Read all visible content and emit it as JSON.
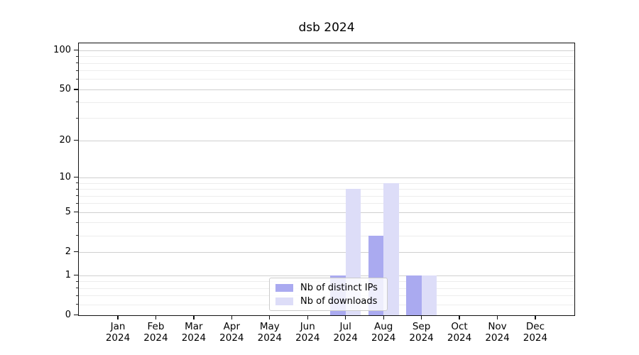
{
  "figure": {
    "title": "dsb 2024",
    "background_color": "#ffffff"
  },
  "chart_data": {
    "type": "bar",
    "title": "dsb 2024",
    "xlabel": "",
    "ylabel": "",
    "categories": [
      "Jan 2024",
      "Feb 2024",
      "Mar 2024",
      "Apr 2024",
      "May 2024",
      "Jun 2024",
      "Jul 2024",
      "Aug 2024",
      "Sep 2024",
      "Oct 2024",
      "Nov 2024",
      "Dec 2024"
    ],
    "series": [
      {
        "name": "Nb of distinct IPs",
        "color": "#aaaaf0",
        "values": [
          0,
          0,
          0,
          0,
          0,
          0,
          1,
          3,
          1,
          0,
          0,
          0
        ]
      },
      {
        "name": "Nb of downloads",
        "color": "#ddddf8",
        "values": [
          0,
          0,
          0,
          0,
          0,
          0,
          8,
          9,
          1,
          0,
          0,
          0
        ]
      }
    ],
    "yscale": "log1p",
    "y_ticks": [
      0,
      1,
      2,
      5,
      10,
      20,
      50,
      100
    ],
    "y_tick_labels": [
      "0",
      "1",
      "2",
      "5",
      "10",
      "20",
      "50",
      "100"
    ],
    "y_minor_ticks": [
      0.2,
      0.4,
      0.6,
      0.8,
      3,
      4,
      6,
      7,
      8,
      9,
      30,
      40,
      60,
      70,
      80,
      90
    ],
    "ylim": [
      0,
      116
    ],
    "grid": "both",
    "legend_position": "inside lower-center",
    "grid_major_color": "#cfcfcf",
    "grid_minor_color": "#ededed",
    "spine_color": "#111111"
  },
  "legend": {
    "items": [
      "Nb of distinct IPs",
      "Nb of downloads"
    ]
  }
}
